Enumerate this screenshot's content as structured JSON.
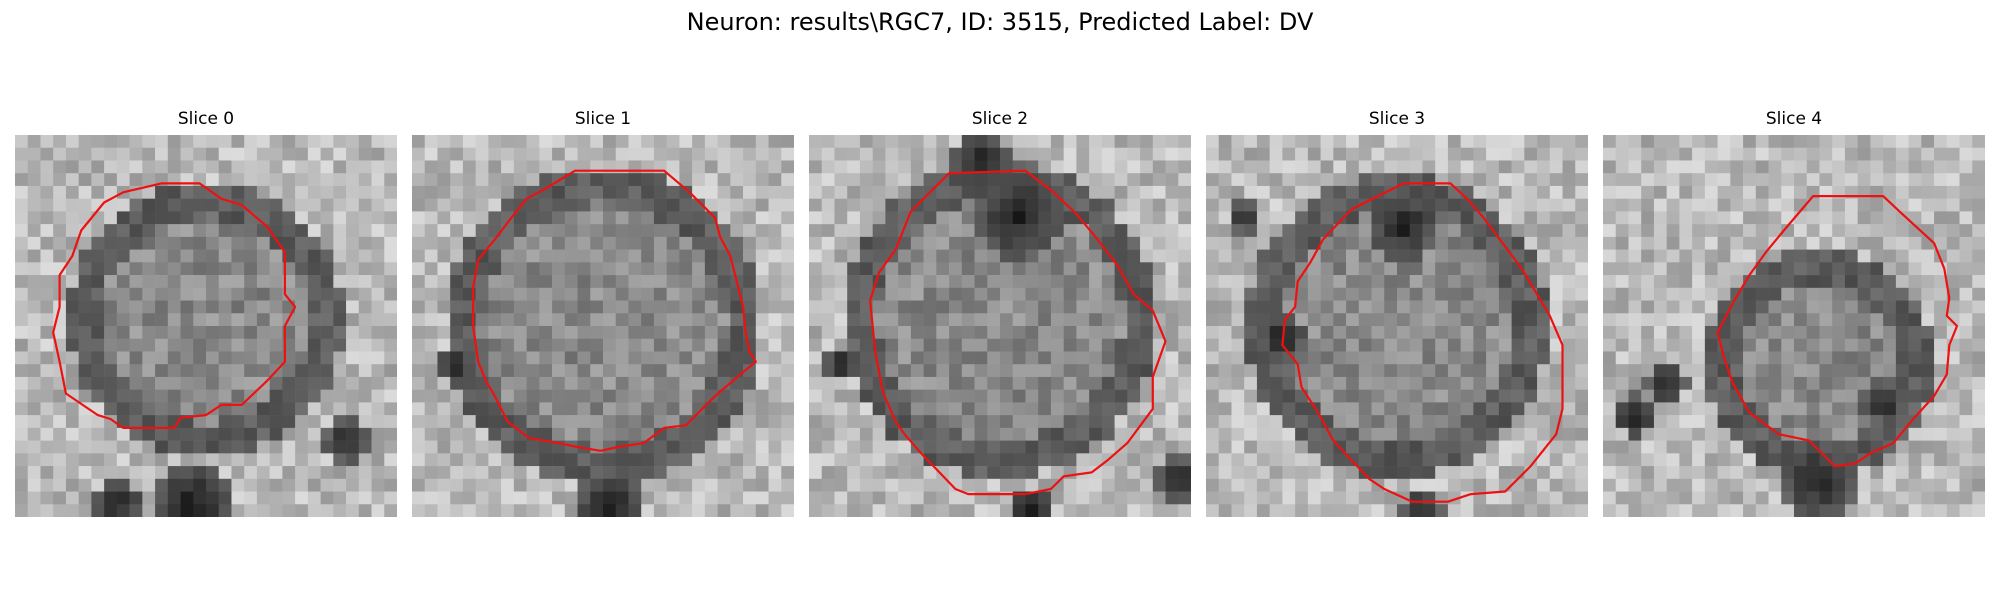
{
  "figure": {
    "title": "Neuron: results\\RGC7, ID: 3515, Predicted Label: DV"
  },
  "panels": [
    {
      "title": "Slice 0"
    },
    {
      "title": "Slice 1"
    },
    {
      "title": "Slice 2"
    },
    {
      "title": "Slice 3"
    },
    {
      "title": "Slice 4"
    }
  ],
  "colors": {
    "contour": "#ee1111",
    "background": "#ffffff",
    "text": "#000000"
  },
  "image": {
    "colormap": "grayscale",
    "grid": [
      30,
      30
    ]
  }
}
